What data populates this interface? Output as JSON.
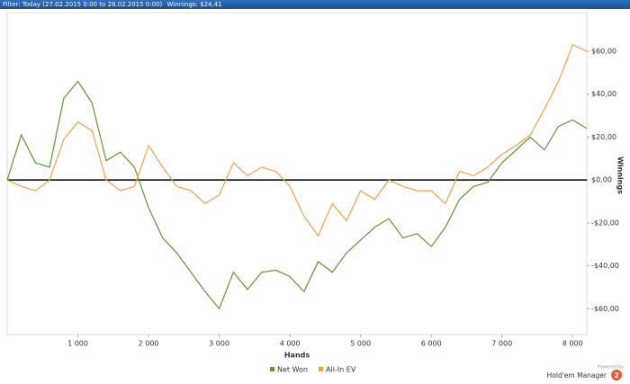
{
  "header": {
    "filter": "Filter: Today (27.02.2015 0:00 to 28.02.2015 0:00)",
    "winnings": "Winnings: $24,41"
  },
  "branding": {
    "powered_by": "Powered by",
    "product": "Hold'em Manager",
    "version": "2"
  },
  "chart_data": {
    "type": "line",
    "x_label": "Hands",
    "y_label": "Winnings",
    "x": [
      0,
      200,
      400,
      600,
      800,
      1000,
      1200,
      1400,
      1600,
      1800,
      2000,
      2200,
      2400,
      2600,
      2800,
      3000,
      3200,
      3400,
      3600,
      3800,
      4000,
      4200,
      4400,
      4600,
      4800,
      5000,
      5200,
      5400,
      5600,
      5800,
      6000,
      6200,
      6400,
      6600,
      6800,
      7000,
      7200,
      7400,
      7600,
      7800,
      8000,
      8200
    ],
    "series": [
      {
        "name": "Net Won",
        "color": "#5a9a2e",
        "values": [
          0,
          21,
          8,
          6,
          38,
          46,
          36,
          9,
          13,
          6,
          -13,
          -27,
          -34,
          -43,
          -52,
          -60,
          -43,
          -51,
          -43,
          -42,
          -45,
          -52,
          -38,
          -43,
          -34,
          -28,
          -22,
          -18,
          -27,
          -25,
          -31,
          -22,
          -9,
          -3,
          -1,
          8,
          14,
          20,
          14,
          25,
          28,
          24
        ]
      },
      {
        "name": "All-In EV",
        "color": "#f5a04a",
        "values": [
          0,
          -3,
          -5,
          0,
          19,
          27,
          23,
          0,
          -5,
          -3,
          16,
          6,
          -3,
          -5,
          -11,
          -7,
          8,
          2,
          6,
          4,
          -3,
          -17,
          -26,
          -11,
          -19,
          -5,
          -9,
          0,
          -3,
          -5,
          -5,
          -11,
          4,
          2,
          6,
          12,
          16,
          21,
          33,
          46,
          63,
          60
        ]
      }
    ],
    "xlim": [
      0,
      8200
    ],
    "xticks": [
      {
        "value": 1000,
        "label": "1 000"
      },
      {
        "value": 2000,
        "label": "2 000"
      },
      {
        "value": 3000,
        "label": "3 000"
      },
      {
        "value": 4000,
        "label": "4 000"
      },
      {
        "value": 5000,
        "label": "5 000"
      },
      {
        "value": 6000,
        "label": "6 000"
      },
      {
        "value": 7000,
        "label": "7 000"
      },
      {
        "value": 8000,
        "label": "8 000"
      }
    ],
    "ylim": [
      -72,
      78
    ],
    "yticks": [
      {
        "value": -60,
        "label": "-$60,00"
      },
      {
        "value": -40,
        "label": "-$40,00"
      },
      {
        "value": -20,
        "label": "-$20,00"
      },
      {
        "value": 0,
        "label": "$0,00"
      },
      {
        "value": 20,
        "label": "$20,00"
      },
      {
        "value": 40,
        "label": "$40,00"
      },
      {
        "value": 60,
        "label": "$60,00"
      }
    ],
    "legend": "bottom",
    "y_axis_side": "right"
  }
}
